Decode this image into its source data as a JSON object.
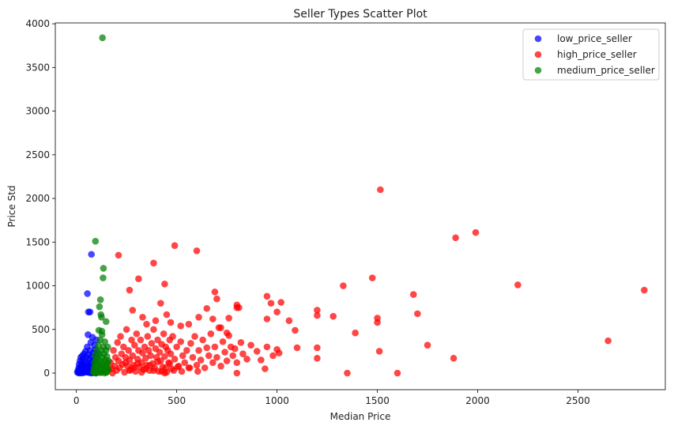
{
  "chart_data": {
    "type": "scatter",
    "title": "Seller Types Scatter Plot",
    "xlabel": "Median Price",
    "ylabel": "Price Std",
    "xlim": [
      -105,
      2935
    ],
    "ylim": [
      -190,
      4010
    ],
    "xticks": [
      0,
      500,
      1000,
      1500,
      2000,
      2500
    ],
    "yticks": [
      0,
      500,
      1000,
      1500,
      2000,
      2500,
      3000,
      3500,
      4000
    ],
    "grid": false,
    "legend_position": "top-right",
    "series": [
      {
        "name": "low_price_seller",
        "color": "#0000ff",
        "points": [
          [
            5,
            10
          ],
          [
            8,
            30
          ],
          [
            10,
            5
          ],
          [
            12,
            60
          ],
          [
            14,
            100
          ],
          [
            16,
            20
          ],
          [
            18,
            140
          ],
          [
            20,
            50
          ],
          [
            22,
            180
          ],
          [
            24,
            80
          ],
          [
            26,
            0
          ],
          [
            28,
            120
          ],
          [
            30,
            200
          ],
          [
            32,
            40
          ],
          [
            34,
            160
          ],
          [
            36,
            90
          ],
          [
            38,
            220
          ],
          [
            40,
            10
          ],
          [
            42,
            60
          ],
          [
            44,
            130
          ],
          [
            46,
            250
          ],
          [
            48,
            30
          ],
          [
            50,
            180
          ],
          [
            52,
            70
          ],
          [
            54,
            300
          ],
          [
            56,
            110
          ],
          [
            58,
            20
          ],
          [
            60,
            210
          ],
          [
            62,
            80
          ],
          [
            64,
            160
          ],
          [
            66,
            40
          ],
          [
            68,
            260
          ],
          [
            70,
            120
          ],
          [
            72,
            350
          ],
          [
            74,
            60
          ],
          [
            76,
            190
          ],
          [
            78,
            30
          ],
          [
            80,
            410
          ],
          [
            82,
            90
          ],
          [
            84,
            230
          ],
          [
            86,
            150
          ],
          [
            88,
            50
          ],
          [
            90,
            320
          ],
          [
            92,
            100
          ],
          [
            94,
            270
          ],
          [
            96,
            0
          ],
          [
            98,
            180
          ],
          [
            100,
            380
          ],
          [
            102,
            70
          ],
          [
            104,
            220
          ],
          [
            15,
            0
          ],
          [
            25,
            15
          ],
          [
            35,
            5
          ],
          [
            45,
            25
          ],
          [
            55,
            10
          ],
          [
            65,
            35
          ],
          [
            75,
            0
          ],
          [
            85,
            45
          ],
          [
            95,
            20
          ],
          [
            20,
            70
          ],
          [
            30,
            95
          ],
          [
            40,
            35
          ],
          [
            50,
            55
          ],
          [
            60,
            15
          ],
          [
            70,
            75
          ],
          [
            80,
            5
          ],
          [
            90,
            65
          ],
          [
            100,
            25
          ],
          [
            65,
            5
          ],
          [
            85,
            130
          ],
          [
            55,
            910
          ],
          [
            60,
            700
          ],
          [
            68,
            700
          ],
          [
            75,
            1360
          ],
          [
            58,
            440
          ]
        ]
      },
      {
        "name": "high_price_seller",
        "color": "#ff0000",
        "points": [
          [
            160,
            40
          ],
          [
            170,
            120
          ],
          [
            180,
            0
          ],
          [
            185,
            260
          ],
          [
            190,
            80
          ],
          [
            195,
            180
          ],
          [
            200,
            30
          ],
          [
            205,
            350
          ],
          [
            210,
            140
          ],
          [
            215,
            60
          ],
          [
            220,
            420
          ],
          [
            225,
            220
          ],
          [
            230,
            100
          ],
          [
            235,
            300
          ],
          [
            240,
            10
          ],
          [
            245,
            180
          ],
          [
            250,
            500
          ],
          [
            255,
            80
          ],
          [
            260,
            260
          ],
          [
            265,
            150
          ],
          [
            270,
            40
          ],
          [
            275,
            380
          ],
          [
            280,
            200
          ],
          [
            285,
            90
          ],
          [
            290,
            320
          ],
          [
            295,
            20
          ],
          [
            300,
            450
          ],
          [
            305,
            160
          ],
          [
            310,
            260
          ],
          [
            315,
            70
          ],
          [
            320,
            380
          ],
          [
            325,
            120
          ],
          [
            330,
            230
          ],
          [
            335,
            40
          ],
          [
            340,
            300
          ],
          [
            345,
            170
          ],
          [
            350,
            90
          ],
          [
            355,
            420
          ],
          [
            360,
            260
          ],
          [
            365,
            30
          ],
          [
            370,
            200
          ],
          [
            375,
            340
          ],
          [
            380,
            110
          ],
          [
            385,
            500
          ],
          [
            390,
            60
          ],
          [
            395,
            280
          ],
          [
            400,
            180
          ],
          [
            405,
            380
          ],
          [
            410,
            20
          ],
          [
            415,
            240
          ],
          [
            420,
            140
          ],
          [
            425,
            330
          ],
          [
            430,
            70
          ],
          [
            435,
            450
          ],
          [
            440,
            190
          ],
          [
            445,
            300
          ],
          [
            450,
            10
          ],
          [
            455,
            260
          ],
          [
            460,
            120
          ],
          [
            465,
            380
          ],
          [
            470,
            220
          ],
          [
            475,
            50
          ],
          [
            480,
            420
          ],
          [
            490,
            160
          ],
          [
            500,
            300
          ],
          [
            510,
            80
          ],
          [
            520,
            360
          ],
          [
            530,
            200
          ],
          [
            540,
            120
          ],
          [
            550,
            260
          ],
          [
            560,
            60
          ],
          [
            570,
            340
          ],
          [
            580,
            180
          ],
          [
            590,
            420
          ],
          [
            600,
            90
          ],
          [
            610,
            260
          ],
          [
            620,
            150
          ],
          [
            630,
            380
          ],
          [
            640,
            60
          ],
          [
            650,
            290
          ],
          [
            660,
            200
          ],
          [
            670,
            450
          ],
          [
            680,
            120
          ],
          [
            690,
            300
          ],
          [
            700,
            180
          ],
          [
            710,
            520
          ],
          [
            720,
            80
          ],
          [
            730,
            360
          ],
          [
            740,
            240
          ],
          [
            750,
            140
          ],
          [
            760,
            430
          ],
          [
            770,
            300
          ],
          [
            780,
            200
          ],
          [
            790,
            280
          ],
          [
            800,
            120
          ],
          [
            810,
            750
          ],
          [
            820,
            350
          ],
          [
            830,
            220
          ],
          [
            850,
            160
          ],
          [
            870,
            320
          ],
          [
            900,
            250
          ],
          [
            920,
            150
          ],
          [
            950,
            300
          ],
          [
            980,
            200
          ],
          [
            175,
            50
          ],
          [
            245,
            120
          ],
          [
            265,
            30
          ],
          [
            285,
            60
          ],
          [
            305,
            110
          ],
          [
            325,
            10
          ],
          [
            345,
            50
          ],
          [
            365,
            90
          ],
          [
            385,
            30
          ],
          [
            405,
            130
          ],
          [
            425,
            20
          ],
          [
            445,
            60
          ],
          [
            465,
            110
          ],
          [
            485,
            30
          ],
          [
            505,
            70
          ],
          [
            525,
            20
          ],
          [
            565,
            60
          ],
          [
            605,
            20
          ],
          [
            210,
            1350
          ],
          [
            265,
            950
          ],
          [
            310,
            1080
          ],
          [
            385,
            1260
          ],
          [
            440,
            1020
          ],
          [
            490,
            1460
          ],
          [
            600,
            1400
          ],
          [
            690,
            930
          ],
          [
            700,
            850
          ],
          [
            800,
            780
          ],
          [
            950,
            880
          ],
          [
            970,
            800
          ],
          [
            1020,
            810
          ],
          [
            1330,
            1000
          ],
          [
            1475,
            1090
          ],
          [
            1515,
            2100
          ],
          [
            1680,
            900
          ],
          [
            1890,
            1550
          ],
          [
            1990,
            1610
          ],
          [
            2200,
            1010
          ],
          [
            2830,
            950
          ],
          [
            280,
            720
          ],
          [
            330,
            640
          ],
          [
            350,
            560
          ],
          [
            395,
            600
          ],
          [
            420,
            800
          ],
          [
            450,
            670
          ],
          [
            470,
            580
          ],
          [
            520,
            540
          ],
          [
            560,
            560
          ],
          [
            610,
            640
          ],
          [
            650,
            740
          ],
          [
            680,
            620
          ],
          [
            720,
            520
          ],
          [
            750,
            460
          ],
          [
            760,
            630
          ],
          [
            800,
            750
          ],
          [
            950,
            620
          ],
          [
            1000,
            700
          ],
          [
            1060,
            600
          ],
          [
            1090,
            490
          ],
          [
            1200,
            720
          ],
          [
            1200,
            660
          ],
          [
            1280,
            650
          ],
          [
            1390,
            460
          ],
          [
            1500,
            630
          ],
          [
            1500,
            580
          ],
          [
            1700,
            680
          ],
          [
            1750,
            320
          ],
          [
            1880,
            170
          ],
          [
            2650,
            370
          ],
          [
            1350,
            0
          ],
          [
            1600,
            0
          ],
          [
            800,
            0
          ],
          [
            440,
            0
          ],
          [
            1100,
            290
          ],
          [
            1200,
            290
          ],
          [
            1200,
            170
          ],
          [
            1000,
            270
          ],
          [
            1010,
            230
          ],
          [
            1510,
            250
          ],
          [
            940,
            50
          ]
        ]
      },
      {
        "name": "medium_price_seller",
        "color": "#008000",
        "points": [
          [
            85,
            10
          ],
          [
            88,
            60
          ],
          [
            90,
            120
          ],
          [
            92,
            30
          ],
          [
            94,
            200
          ],
          [
            96,
            80
          ],
          [
            98,
            150
          ],
          [
            100,
            20
          ],
          [
            102,
            260
          ],
          [
            104,
            100
          ],
          [
            106,
            180
          ],
          [
            108,
            40
          ],
          [
            110,
            320
          ],
          [
            112,
            120
          ],
          [
            114,
            220
          ],
          [
            116,
            60
          ],
          [
            118,
            380
          ],
          [
            120,
            140
          ],
          [
            122,
            10
          ],
          [
            124,
            260
          ],
          [
            126,
            90
          ],
          [
            128,
            440
          ],
          [
            130,
            180
          ],
          [
            132,
            50
          ],
          [
            134,
            300
          ],
          [
            136,
            120
          ],
          [
            138,
            220
          ],
          [
            140,
            30
          ],
          [
            142,
            360
          ],
          [
            144,
            150
          ],
          [
            146,
            80
          ],
          [
            148,
            260
          ],
          [
            150,
            10
          ],
          [
            152,
            190
          ],
          [
            154,
            110
          ],
          [
            156,
            300
          ],
          [
            158,
            50
          ],
          [
            160,
            140
          ],
          [
            90,
            5
          ],
          [
            100,
            0
          ],
          [
            110,
            15
          ],
          [
            120,
            5
          ],
          [
            130,
            20
          ],
          [
            140,
            0
          ],
          [
            150,
            10
          ],
          [
            95,
            40
          ],
          [
            105,
            70
          ],
          [
            115,
            35
          ],
          [
            125,
            60
          ],
          [
            135,
            45
          ],
          [
            145,
            75
          ],
          [
            155,
            30
          ],
          [
            130,
            3840
          ],
          [
            95,
            1510
          ],
          [
            135,
            1200
          ],
          [
            133,
            1090
          ],
          [
            120,
            840
          ],
          [
            115,
            760
          ],
          [
            122,
            670
          ],
          [
            125,
            640
          ],
          [
            148,
            590
          ],
          [
            112,
            490
          ],
          [
            127,
            480
          ]
        ]
      }
    ]
  }
}
